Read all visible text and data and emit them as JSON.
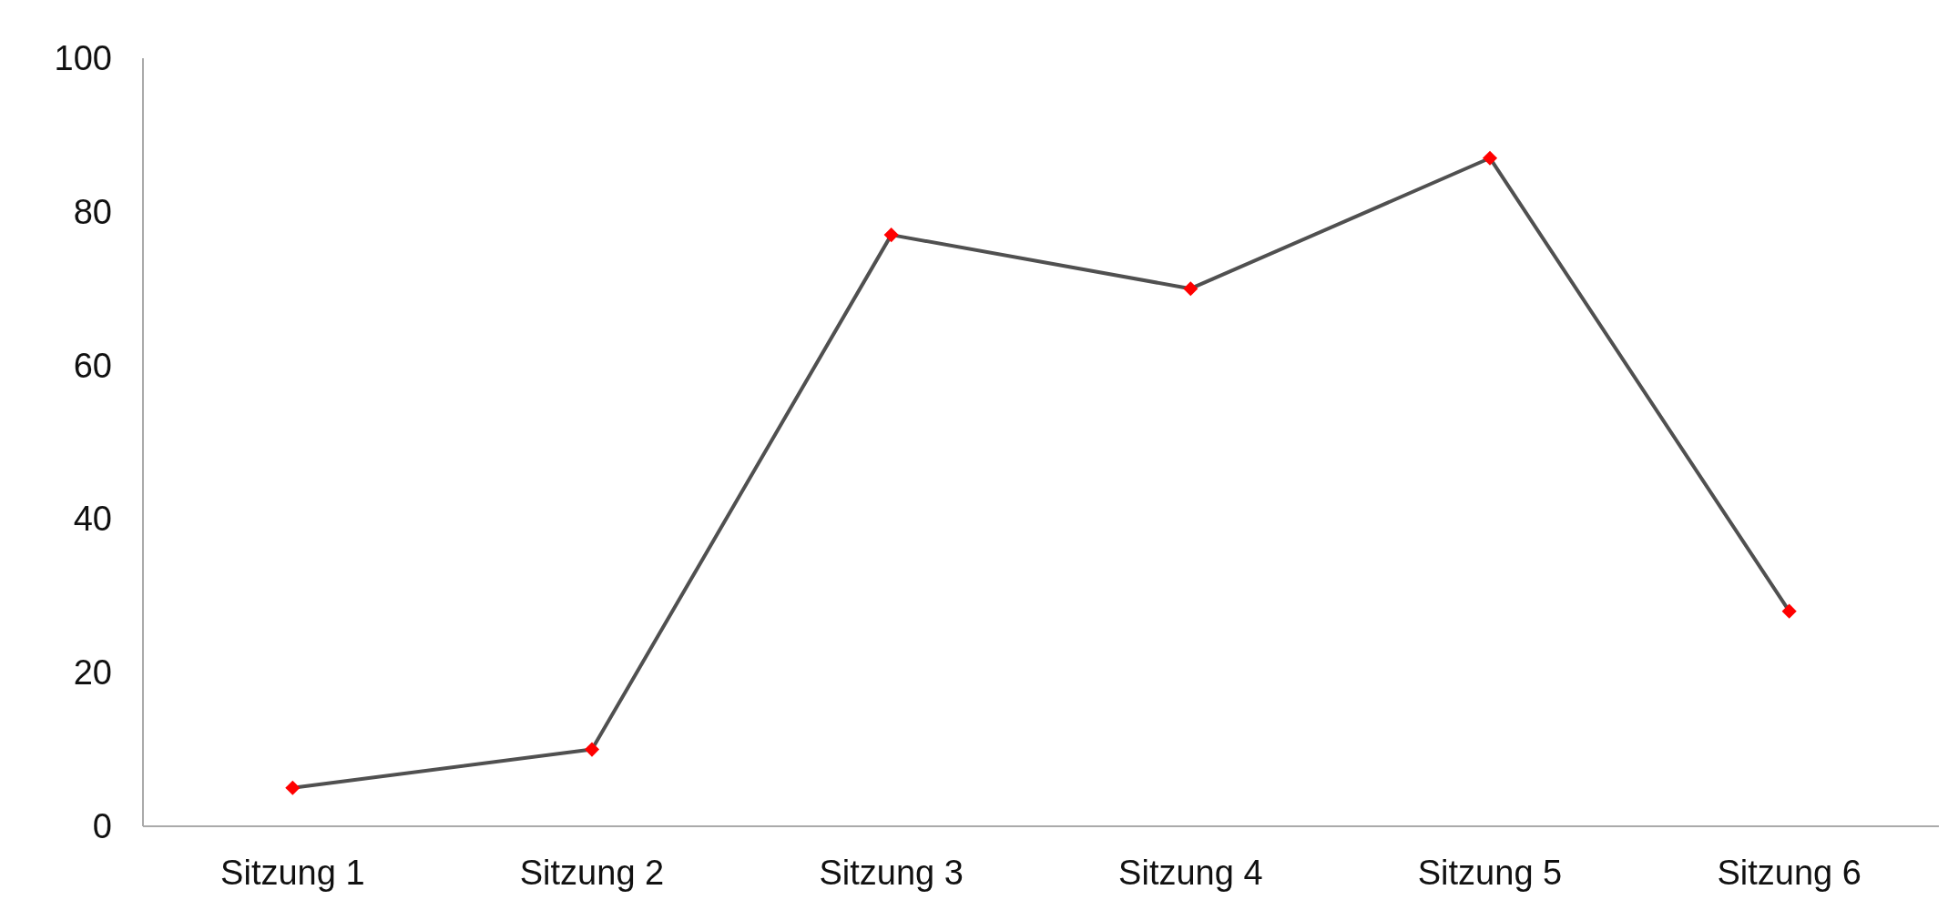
{
  "chart_data": {
    "type": "line",
    "categories": [
      "Sitzung 1",
      "Sitzung 2",
      "Sitzung 3",
      "Sitzung 4",
      "Sitzung 5",
      "Sitzung 6"
    ],
    "series": [
      {
        "color": "#505050",
        "values": [
          5,
          10,
          77,
          70,
          87,
          28
        ]
      }
    ],
    "marker": "diamond",
    "ylim": [
      0,
      100
    ],
    "yticks": [
      0,
      20,
      40,
      60,
      80,
      100
    ],
    "grid": false
  }
}
